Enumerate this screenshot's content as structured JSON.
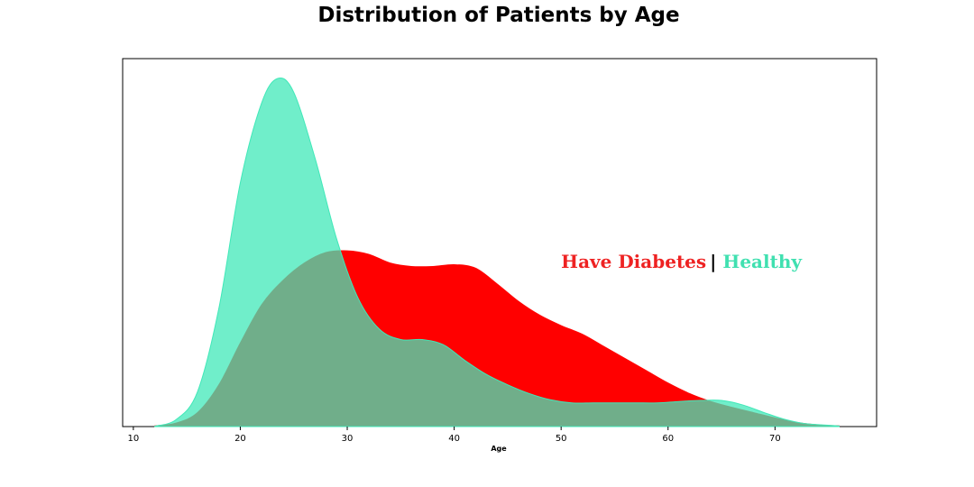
{
  "chart_data": {
    "type": "area",
    "title": "Distribution of Patients by Age",
    "xlabel": "Age",
    "ylabel": "",
    "xlim": [
      9,
      79.5
    ],
    "ylim": [
      0,
      1.0
    ],
    "x_ticks": [
      10,
      20,
      30,
      40,
      50,
      60,
      70
    ],
    "grid": false,
    "legend": {
      "placement": "center-right",
      "separator": "|",
      "entries": [
        {
          "label": "Have Diabetes",
          "color": "#ee2222"
        },
        {
          "label": "Healthy",
          "color": "#40e0b0"
        }
      ]
    },
    "series": [
      {
        "key": "diabetes",
        "color": "#ff0000",
        "opacity": 1.0,
        "x": [
          12,
          14,
          16,
          18,
          20,
          22,
          24,
          26,
          28,
          30,
          32,
          34,
          36,
          38,
          40,
          42,
          44,
          46,
          48,
          50,
          52,
          54,
          56,
          58,
          60,
          62,
          64,
          66,
          68,
          70,
          72,
          74,
          76
        ],
        "y": [
          0.002,
          0.01,
          0.04,
          0.12,
          0.24,
          0.35,
          0.42,
          0.47,
          0.5,
          0.505,
          0.495,
          0.47,
          0.46,
          0.46,
          0.465,
          0.455,
          0.41,
          0.36,
          0.32,
          0.29,
          0.265,
          0.23,
          0.195,
          0.16,
          0.125,
          0.095,
          0.072,
          0.055,
          0.04,
          0.025,
          0.012,
          0.005,
          0.002
        ]
      },
      {
        "key": "healthy",
        "color": "#40e8b8",
        "opacity": 0.75,
        "x": [
          12,
          14,
          16,
          18,
          20,
          22,
          23.5,
          25,
          27,
          29,
          31,
          33,
          35,
          37,
          39,
          41,
          43,
          45,
          47,
          49,
          51,
          53,
          55,
          57,
          59,
          61,
          63,
          65,
          67,
          69,
          71,
          73,
          76
        ],
        "y": [
          0.001,
          0.02,
          0.1,
          0.34,
          0.7,
          0.93,
          1.0,
          0.96,
          0.77,
          0.54,
          0.37,
          0.28,
          0.25,
          0.25,
          0.235,
          0.19,
          0.15,
          0.12,
          0.095,
          0.077,
          0.068,
          0.068,
          0.068,
          0.068,
          0.068,
          0.072,
          0.075,
          0.075,
          0.062,
          0.04,
          0.02,
          0.008,
          0.002
        ]
      }
    ]
  }
}
